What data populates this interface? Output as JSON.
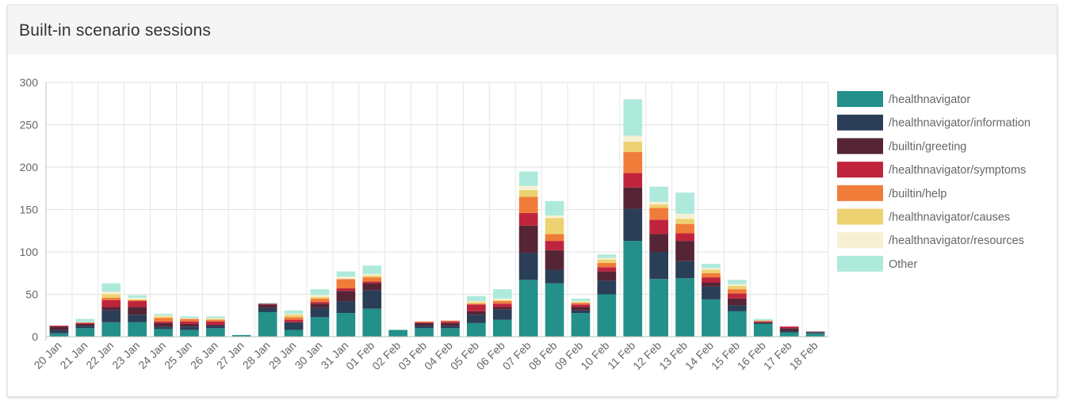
{
  "card": {
    "title": "Built-in scenario sessions"
  },
  "chart_data": {
    "type": "bar",
    "stacked": true,
    "title": "",
    "xlabel": "",
    "ylabel": "",
    "ylim": [
      0,
      300
    ],
    "yticks": [
      0,
      50,
      100,
      150,
      200,
      250,
      300
    ],
    "grid": true,
    "legend_position": "right",
    "categories": [
      "20 Jan",
      "21 Jan",
      "22 Jan",
      "23 Jan",
      "24 Jan",
      "25 Jan",
      "26 Jan",
      "27 Jan",
      "28 Jan",
      "29 Jan",
      "30 Jan",
      "31 Jan",
      "01 Feb",
      "02 Feb",
      "03 Feb",
      "04 Feb",
      "05 Feb",
      "06 Feb",
      "07 Feb",
      "08 Feb",
      "09 Feb",
      "10 Feb",
      "11 Feb",
      "12 Feb",
      "13 Feb",
      "14 Feb",
      "15 Feb",
      "16 Feb",
      "17 Feb",
      "18 Feb"
    ],
    "series": [
      {
        "name": "/healthnavigator",
        "color": "#23908a",
        "values": [
          4,
          10,
          17,
          17,
          9,
          8,
          10,
          2,
          29,
          8,
          23,
          28,
          33,
          8,
          10,
          10,
          16,
          20,
          67,
          63,
          28,
          50,
          113,
          68,
          69,
          44,
          30,
          15,
          5,
          4
        ]
      },
      {
        "name": "/healthnavigator/information",
        "color": "#2b3e58",
        "values": [
          4,
          3,
          14,
          9,
          3,
          4,
          3,
          0,
          5,
          9,
          11,
          14,
          22,
          0,
          3,
          3,
          10,
          12,
          32,
          16,
          3,
          16,
          38,
          32,
          20,
          15,
          7,
          1,
          2,
          1
        ]
      },
      {
        "name": "/builtin/greeting",
        "color": "#552535",
        "values": [
          4,
          2,
          4,
          9,
          4,
          3,
          1,
          0,
          4,
          0,
          5,
          12,
          8,
          0,
          3,
          3,
          4,
          3,
          32,
          23,
          4,
          11,
          25,
          21,
          24,
          5,
          8,
          1,
          3,
          1
        ]
      },
      {
        "name": "/healthnavigator/symptoms",
        "color": "#c0243d",
        "values": [
          1,
          1,
          8,
          7,
          2,
          3,
          4,
          0,
          1,
          3,
          2,
          3,
          2,
          0,
          1,
          2,
          8,
          4,
          15,
          11,
          3,
          5,
          17,
          17,
          9,
          6,
          6,
          1,
          2,
          0
        ]
      },
      {
        "name": "/builtin/help",
        "color": "#f07c3a",
        "values": [
          0,
          1,
          3,
          1,
          4,
          3,
          2,
          0,
          0,
          3,
          4,
          11,
          5,
          0,
          1,
          1,
          1,
          3,
          19,
          8,
          2,
          5,
          25,
          14,
          11,
          5,
          5,
          1,
          0,
          0
        ]
      },
      {
        "name": "/healthnavigator/causes",
        "color": "#edd271",
        "values": [
          0,
          0,
          4,
          1,
          2,
          0,
          1,
          0,
          0,
          3,
          2,
          0,
          2,
          0,
          0,
          0,
          2,
          1,
          8,
          19,
          1,
          4,
          12,
          4,
          6,
          4,
          4,
          0,
          0,
          0
        ]
      },
      {
        "name": "/healthnavigator/resources",
        "color": "#f7f0d2",
        "values": [
          0,
          0,
          3,
          2,
          1,
          1,
          1,
          0,
          0,
          1,
          2,
          3,
          2,
          0,
          0,
          0,
          1,
          2,
          5,
          3,
          1,
          2,
          7,
          3,
          6,
          2,
          2,
          0,
          0,
          0
        ]
      },
      {
        "name": "Other",
        "color": "#aeeadb",
        "values": [
          0,
          4,
          10,
          3,
          2,
          2,
          2,
          0,
          1,
          4,
          7,
          6,
          10,
          0,
          0,
          0,
          6,
          11,
          17,
          17,
          3,
          4,
          43,
          18,
          25,
          5,
          5,
          2,
          0,
          0
        ]
      }
    ]
  }
}
